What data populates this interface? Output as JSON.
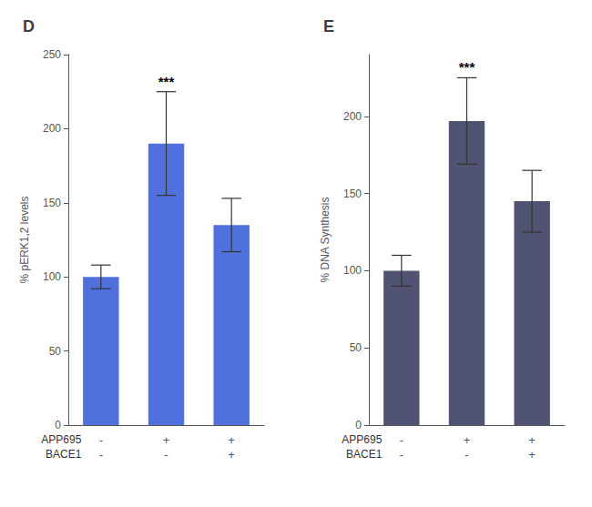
{
  "chart_data": [
    {
      "type": "bar",
      "title": "D",
      "ylabel": "% pERK1,2 levels",
      "categories": [
        "-\n-",
        "+\n-",
        "+\n+"
      ],
      "row_labels": [
        "APP695",
        "BACE1"
      ],
      "values": [
        100,
        190,
        135
      ],
      "errors": [
        8,
        35,
        18
      ],
      "ylim": [
        0,
        250
      ],
      "yticks": [
        0,
        50,
        100,
        150,
        200,
        250
      ],
      "annotations": [
        {
          "text": "***",
          "category": "+\n-"
        }
      ],
      "grid": false
    },
    {
      "type": "bar",
      "title": "E",
      "ylabel": "% DNA Synthesis",
      "categories": [
        "-\n-",
        "+\n-",
        "+\n+"
      ],
      "row_labels": [
        "APP695",
        "BACE1"
      ],
      "values": [
        100,
        197,
        145
      ],
      "errors": [
        10,
        28,
        20
      ],
      "ylim": [
        0,
        240
      ],
      "yticks": [
        0,
        50,
        100,
        150,
        200
      ],
      "annotations": [
        {
          "text": "***",
          "category": "+\n-"
        }
      ],
      "grid": false
    }
  ]
}
